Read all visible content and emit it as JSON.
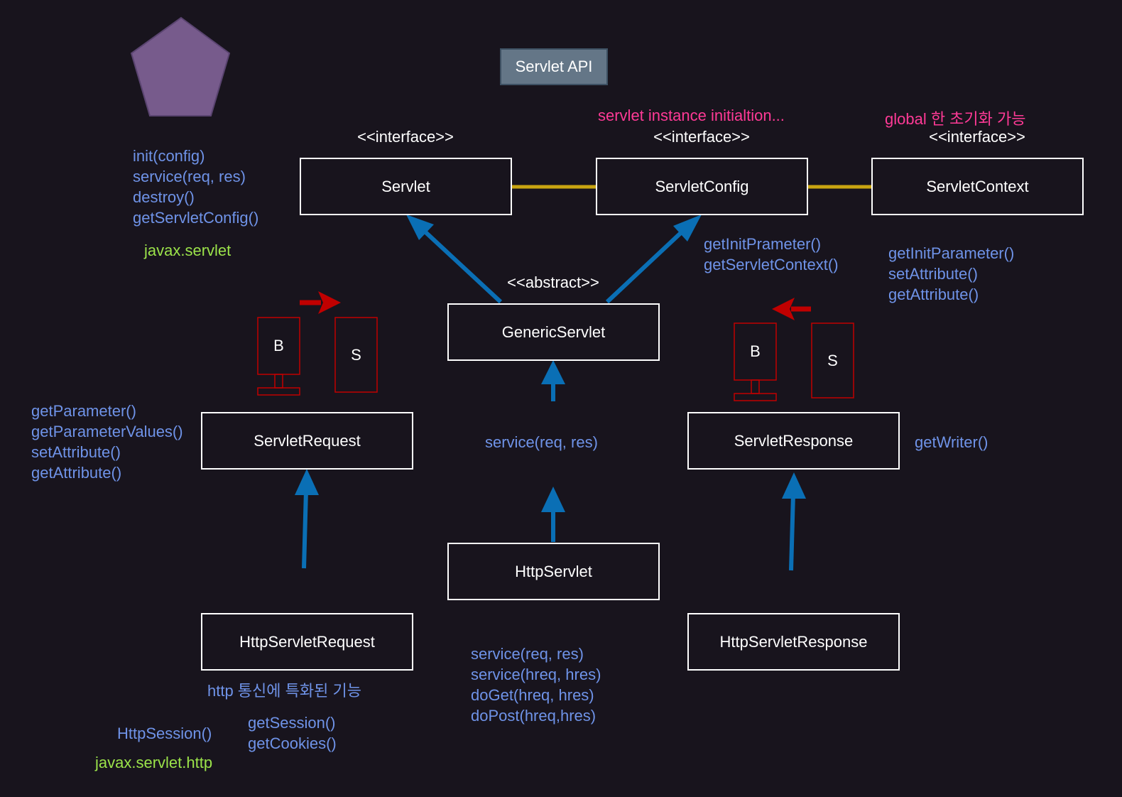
{
  "title": "Servlet API",
  "nodes": {
    "servlet": "Servlet",
    "servlet_config": "ServletConfig",
    "servlet_context": "ServletContext",
    "generic_servlet": "GenericServlet",
    "servlet_request": "ServletRequest",
    "servlet_response": "ServletResponse",
    "http_servlet": "HttpServlet",
    "http_servlet_request": "HttpServletRequest",
    "http_servlet_response": "HttpServletResponse"
  },
  "stereotypes": {
    "servlet": "<<interface>>",
    "servlet_config": "<<interface>>",
    "servlet_context": "<<interface>>",
    "generic_servlet": "<<abstract>>"
  },
  "notes": {
    "config_note": "servlet instance initialtion...",
    "context_note": "global 한 초기화 가능",
    "http_request_note": "http 통신에 특화된 기능",
    "package_servlet": "javax.servlet",
    "package_http": "javax.servlet.http",
    "http_session": "HttpSession()"
  },
  "methods": {
    "servlet": [
      "init(config)",
      "service(req, res)",
      "destroy()",
      "getServletConfig()"
    ],
    "servlet_config": [
      "getInitPrameter()",
      "getServletContext()"
    ],
    "servlet_context": [
      "getInitParameter()",
      "setAttribute()",
      "getAttribute()"
    ],
    "servlet_request": [
      "getParameter()",
      "getParameterValues()",
      "setAttribute()",
      "getAttribute()"
    ],
    "generic_servlet": [
      "service(req, res)"
    ],
    "servlet_response": [
      "getWriter()"
    ],
    "http_servlet": [
      "service(req, res)",
      "service(hreq, hres)",
      "doGet(hreq, hres)",
      "doPost(hreq,hres)"
    ],
    "http_servlet_request": [
      "getSession()",
      "getCookies()"
    ]
  },
  "icons": {
    "browser_label": "B",
    "server_label": "S",
    "shape": "pentagon-icon",
    "browser": "monitor-icon",
    "server": "server-icon"
  },
  "colors": {
    "background": "#18141d",
    "box_border": "#ffffff",
    "method_text": "#6f93e8",
    "package_text": "#9be34a",
    "note_text": "#ff3a96",
    "inherit_arrow": "#0a6fb5",
    "association_line": "#c9a511",
    "flow_arrow": "#c00000",
    "pentagon_fill": "#775b8c",
    "title_fill": "#647687"
  }
}
